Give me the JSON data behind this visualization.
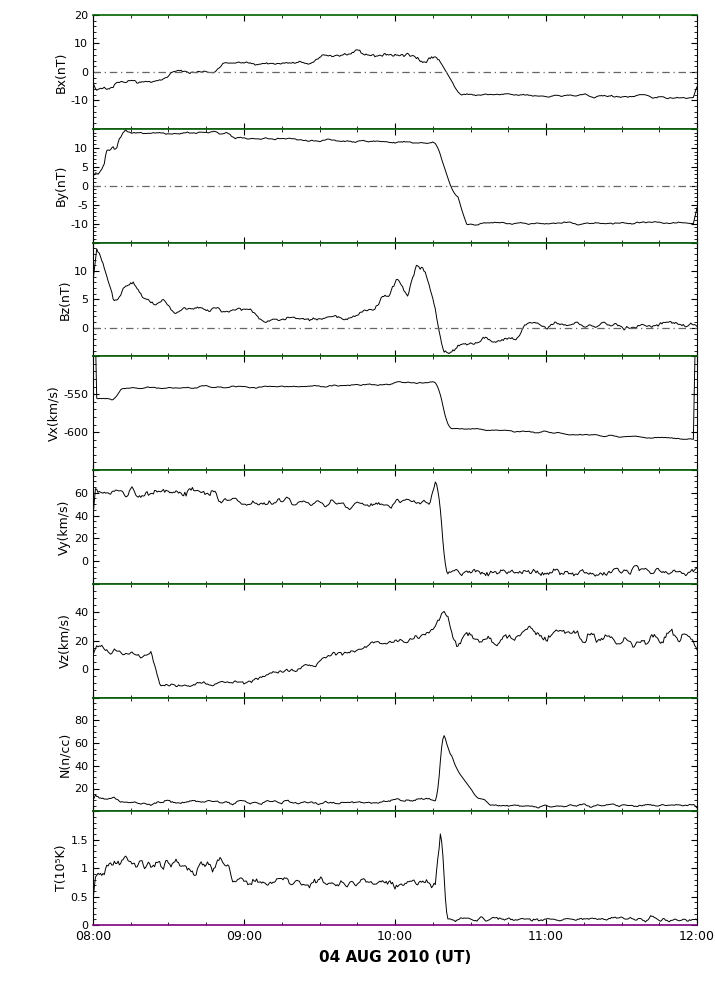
{
  "title": "04 AUG 2010 (UT)",
  "time_start": 480,
  "time_end": 720,
  "panels": [
    {
      "ylabel": "Bx(nT)",
      "ylim": [
        -20,
        20
      ],
      "yticks": [
        -20,
        -10,
        0,
        10,
        20
      ],
      "zero_line": true,
      "panel_type": "Bx"
    },
    {
      "ylabel": "By(nT)",
      "ylim": [
        -15,
        15
      ],
      "yticks": [
        -15,
        -10,
        -5,
        0,
        5,
        10,
        15
      ],
      "zero_line": true,
      "panel_type": "By"
    },
    {
      "ylabel": "Bz(nT)",
      "ylim": [
        -5,
        15
      ],
      "yticks": [
        -5,
        0,
        5,
        10,
        15
      ],
      "zero_line": true,
      "panel_type": "Bz"
    },
    {
      "ylabel": "Vx(km/s)",
      "ylim": [
        -650,
        -500
      ],
      "yticks": [
        -650,
        -600,
        -550,
        -500
      ],
      "zero_line": false,
      "panel_type": "Vx"
    },
    {
      "ylabel": "Vy(km/s)",
      "ylim": [
        -20,
        80
      ],
      "yticks": [
        -20,
        0,
        20,
        40,
        60,
        80
      ],
      "zero_line": false,
      "panel_type": "Vy"
    },
    {
      "ylabel": "Vz(km/s)",
      "ylim": [
        -20,
        60
      ],
      "yticks": [
        -20,
        0,
        20,
        40,
        60
      ],
      "zero_line": false,
      "panel_type": "Vz"
    },
    {
      "ylabel": "N(n/cc)",
      "ylim": [
        0,
        100
      ],
      "yticks": [
        0,
        20,
        40,
        60,
        80,
        100
      ],
      "zero_line": false,
      "panel_type": "N"
    },
    {
      "ylabel": "T(10⁵K)",
      "ylim": [
        0.0,
        2.0
      ],
      "yticks": [
        0.0,
        0.5,
        1.0,
        1.5,
        2.0
      ],
      "zero_line": false,
      "panel_type": "T"
    }
  ],
  "line_color": "#000000",
  "dash_color": "#666666",
  "bg_color": "#ffffff",
  "border_top_color": "#006400",
  "border_bottom_color": "#800080",
  "xtick_labels": [
    "08:00",
    "09:00",
    "10:00",
    "11:00",
    "12:00"
  ],
  "xtick_positions": [
    480,
    540,
    600,
    660,
    720
  ]
}
